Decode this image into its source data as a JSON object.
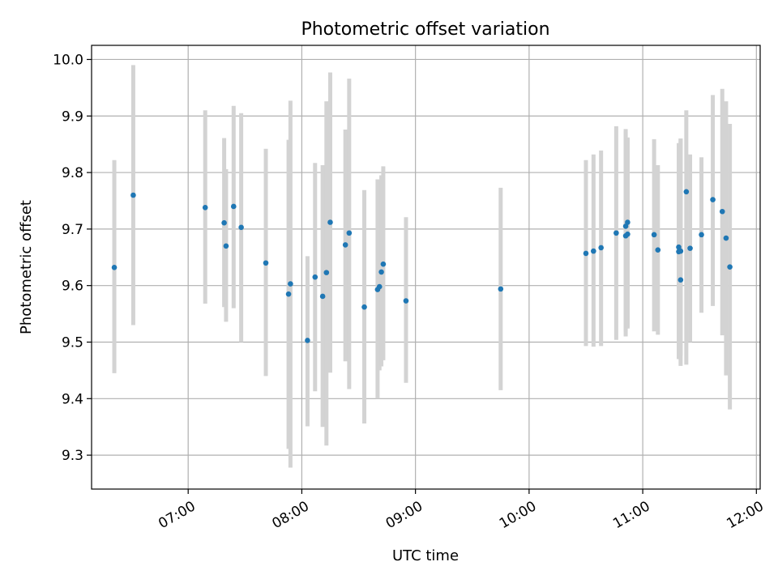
{
  "chart_data": {
    "type": "scatter",
    "title": "Photometric offset variation",
    "xlabel": "UTC time",
    "ylabel": "Photometric offset",
    "x_is_time": true,
    "xlim": [
      "06:09",
      "12:02"
    ],
    "ylim": [
      9.24,
      10.025
    ],
    "xticks": [
      "07:00",
      "08:00",
      "09:00",
      "10:00",
      "11:00",
      "12:00"
    ],
    "yticks": [
      "9.3",
      "9.4",
      "9.5",
      "9.6",
      "9.7",
      "9.8",
      "9.9",
      "10.0"
    ],
    "grid": true,
    "colors": {
      "point": "#1f77b4",
      "errorbar": "#d3d3d3",
      "grid": "#b0b0b0"
    },
    "series": [
      {
        "x": [
          "06:21",
          "06:31",
          "07:09",
          "07:19",
          "07:20",
          "07:24",
          "07:28",
          "07:41",
          "07:53",
          "07:54",
          "08:03",
          "08:07",
          "08:11",
          "08:13",
          "08:15",
          "08:23",
          "08:25",
          "08:33",
          "08:40",
          "08:41",
          "08:42",
          "08:43",
          "08:55",
          "09:45",
          "10:30",
          "10:34",
          "10:38",
          "10:46",
          "10:51",
          "10:51",
          "10:52",
          "10:52",
          "11:06",
          "11:08",
          "11:19",
          "11:19",
          "11:20",
          "11:20",
          "11:23",
          "11:25",
          "11:31",
          "11:37",
          "11:42",
          "11:44",
          "11:46"
        ],
        "y": [
          9.632,
          9.76,
          9.738,
          9.711,
          9.67,
          9.74,
          9.703,
          9.64,
          9.585,
          9.603,
          9.503,
          9.615,
          9.581,
          9.623,
          9.712,
          9.672,
          9.693,
          9.562,
          9.593,
          9.598,
          9.624,
          9.638,
          9.573,
          9.594,
          9.657,
          9.661,
          9.667,
          9.693,
          9.705,
          9.688,
          9.712,
          9.691,
          9.69,
          9.663,
          9.668,
          9.66,
          9.61,
          9.661,
          9.766,
          9.666,
          9.69,
          9.752,
          9.731,
          9.684,
          9.633
        ],
        "yerr_low": [
          9.445,
          9.53,
          9.568,
          9.562,
          9.536,
          9.56,
          9.5,
          9.44,
          9.311,
          9.278,
          9.351,
          9.413,
          9.35,
          9.317,
          9.446,
          9.466,
          9.417,
          9.356,
          9.4,
          9.45,
          9.457,
          9.468,
          9.428,
          9.415,
          9.493,
          9.492,
          9.493,
          9.504,
          9.51,
          9.519,
          9.524,
          9.526,
          9.519,
          9.513,
          9.481,
          9.47,
          9.458,
          9.476,
          9.46,
          9.5,
          9.552,
          9.564,
          9.512,
          9.441,
          9.381
        ],
        "yerr_high": [
          9.822,
          9.99,
          9.91,
          9.861,
          9.806,
          9.918,
          9.905,
          9.842,
          9.858,
          9.927,
          9.652,
          9.817,
          9.813,
          9.926,
          9.977,
          9.876,
          9.966,
          9.769,
          9.788,
          9.786,
          9.795,
          9.811,
          9.721,
          9.773,
          9.822,
          9.832,
          9.839,
          9.882,
          9.877,
          9.872,
          9.862,
          9.86,
          9.859,
          9.813,
          9.852,
          9.851,
          9.86,
          9.86,
          9.91,
          9.832,
          9.827,
          9.937,
          9.948,
          9.926,
          9.886
        ]
      }
    ]
  }
}
